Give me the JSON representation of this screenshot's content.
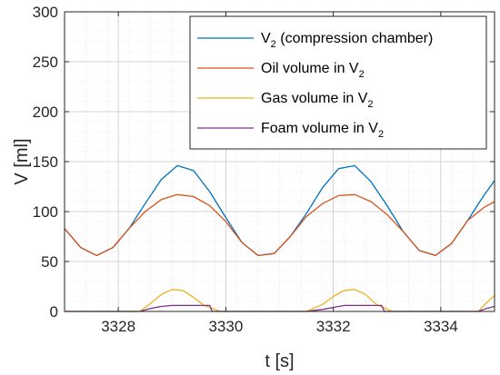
{
  "chart_data": {
    "type": "line",
    "title": "",
    "xlabel": "t [s]",
    "ylabel": "V [ml]",
    "xlim": [
      3327,
      3335
    ],
    "ylim": [
      0,
      300
    ],
    "xticks": [
      3328,
      3330,
      3332,
      3334
    ],
    "yticks": [
      0,
      50,
      100,
      150,
      200,
      250,
      300
    ],
    "xtick_labels": [
      "3328",
      "3330",
      "3332",
      "3334"
    ],
    "ytick_labels": [
      "0",
      "50",
      "100",
      "150",
      "200",
      "250",
      "300"
    ],
    "grid": true,
    "minor_grid": true,
    "legend_position": "top-right",
    "series": [
      {
        "name": "V",
        "name_sub": "2",
        "name_suffix": " (compression chamber)",
        "color": "#0072BD",
        "x": [
          3327.0,
          3327.3,
          3327.6,
          3327.9,
          3328.2,
          3328.5,
          3328.8,
          3329.1,
          3329.4,
          3329.7,
          3330.0,
          3330.3,
          3330.6,
          3330.9,
          3331.2,
          3331.5,
          3331.8,
          3332.1,
          3332.4,
          3332.7,
          3333.0,
          3333.3,
          3333.6,
          3333.9,
          3334.2,
          3334.5,
          3334.8,
          3335.0
        ],
        "y": [
          83,
          64,
          56,
          64,
          83,
          108,
          132,
          146,
          141,
          120,
          94,
          69,
          56,
          58,
          75,
          98,
          124,
          143,
          146,
          130,
          106,
          80,
          61,
          56,
          68,
          91,
          116,
          131
        ]
      },
      {
        "name": "Oil volume in V",
        "name_sub": "2",
        "name_suffix": "",
        "color": "#D95319",
        "x": [
          3327.0,
          3327.3,
          3327.6,
          3327.9,
          3328.2,
          3328.5,
          3328.8,
          3329.1,
          3329.4,
          3329.7,
          3330.0,
          3330.3,
          3330.6,
          3330.9,
          3331.2,
          3331.5,
          3331.8,
          3332.1,
          3332.4,
          3332.7,
          3333.0,
          3333.3,
          3333.6,
          3333.9,
          3334.2,
          3334.5,
          3334.8,
          3335.0
        ],
        "y": [
          83,
          64,
          56,
          64,
          83,
          100,
          112,
          117,
          115,
          106,
          90,
          69,
          56,
          58,
          75,
          95,
          108,
          116,
          117,
          110,
          97,
          80,
          61,
          56,
          68,
          91,
          104,
          110
        ]
      },
      {
        "name": "Gas volume in V",
        "name_sub": "2",
        "name_suffix": "",
        "color": "#EDB120",
        "x": [
          3327.0,
          3328.0,
          3328.4,
          3328.6,
          3328.8,
          3329.0,
          3329.2,
          3329.4,
          3329.6,
          3329.9,
          3331.5,
          3331.8,
          3332.0,
          3332.2,
          3332.4,
          3332.6,
          3332.8,
          3333.1,
          3334.7,
          3334.8,
          3335.0
        ],
        "y": [
          0,
          0,
          0,
          8,
          17,
          22,
          21,
          14,
          6,
          0,
          0,
          7,
          15,
          21,
          22,
          17,
          7,
          0,
          0,
          6,
          16
        ]
      },
      {
        "name": "Foam volume in V",
        "name_sub": "2",
        "name_suffix": "",
        "color": "#7E2F8E",
        "x": [
          3327.0,
          3328.0,
          3328.4,
          3328.6,
          3328.8,
          3329.0,
          3329.6,
          3329.7,
          3329.75,
          3331.5,
          3331.8,
          3332.0,
          3332.2,
          3332.4,
          3332.9,
          3332.95,
          3334.7,
          3334.85,
          3335.0
        ],
        "y": [
          0,
          0,
          0,
          3,
          5,
          6,
          6,
          6,
          0,
          0,
          2,
          4,
          6,
          6,
          6,
          0,
          0,
          3,
          5
        ]
      }
    ]
  }
}
